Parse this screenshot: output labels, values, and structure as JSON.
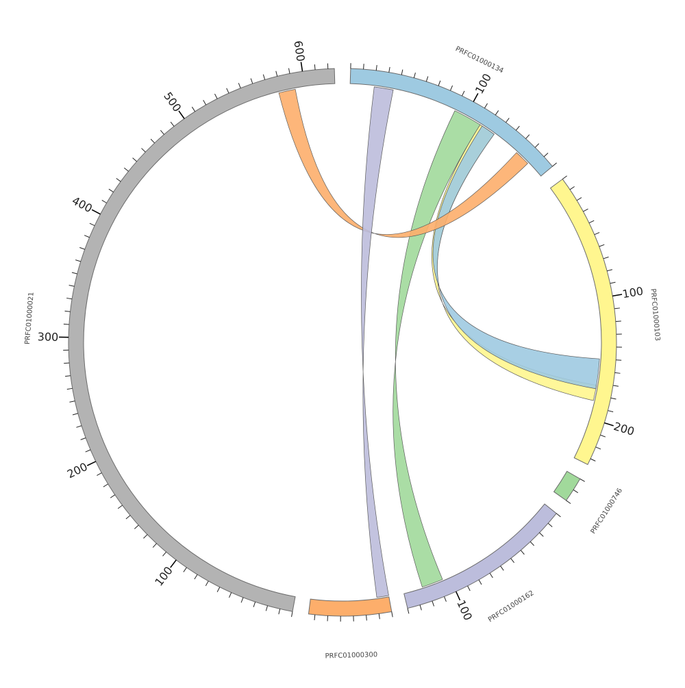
{
  "segments": [
    {
      "id": "s134",
      "label": "PRFC01000134",
      "length": 180,
      "color": "#9ecae1",
      "ticks": [
        "100"
      ]
    },
    {
      "id": "s103",
      "label": "PRFC01000103",
      "length": 235,
      "color": "#fff68f",
      "ticks": [
        "100",
        "200"
      ]
    },
    {
      "id": "s746",
      "label": "PRFC01000746",
      "length": 20,
      "color": "#a1d99b",
      "ticks": []
    },
    {
      "id": "s162",
      "label": "PRFC01000162",
      "length": 140,
      "color": "#bcbddc",
      "ticks": [
        "100"
      ]
    },
    {
      "id": "s300",
      "label": "PRFC01000300",
      "length": 65,
      "color": "#fdae6b",
      "ticks": []
    },
    {
      "id": "s021",
      "label": "PRFC01000021",
      "length": 625,
      "color": "#b3b3b3",
      "ticks": [
        "100",
        "200",
        "300",
        "400",
        "500",
        "600"
      ]
    }
  ],
  "links": [
    {
      "from": {
        "segment": "s134",
        "start": 90,
        "end": 114
      },
      "to": {
        "segment": "s162",
        "start": 106,
        "end": 124
      },
      "color": "#a1d99b"
    },
    {
      "from": {
        "segment": "s134",
        "start": 114,
        "end": 128
      },
      "to": {
        "segment": "s103",
        "start": 172,
        "end": 185
      },
      "color": "#fff68f"
    },
    {
      "from": {
        "segment": "s134",
        "start": 116,
        "end": 128
      },
      "to": {
        "segment": "s103",
        "start": 150,
        "end": 175
      },
      "color": "#9ecae1"
    },
    {
      "from": {
        "segment": "s134",
        "start": 152,
        "end": 165
      },
      "to": {
        "segment": "s021",
        "start": 578,
        "end": 592
      },
      "color": "#fdae6b"
    },
    {
      "from": {
        "segment": "s134",
        "start": 20,
        "end": 36
      },
      "to": {
        "segment": "s300",
        "start": 0,
        "end": 10
      },
      "color": "#bcbddc"
    }
  ]
}
